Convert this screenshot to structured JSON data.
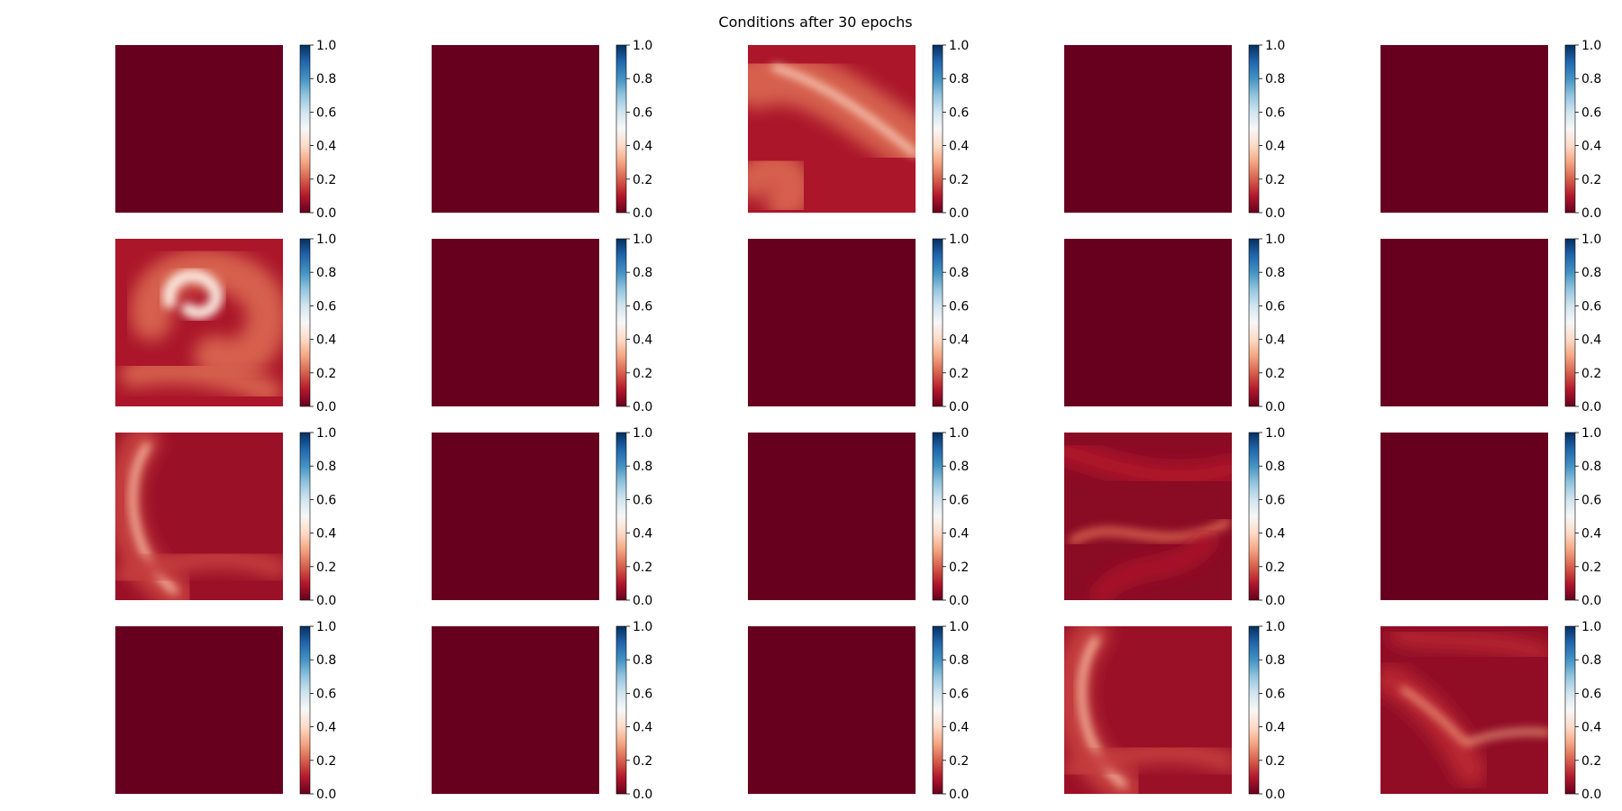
{
  "chart_data": {
    "type": "heatmap",
    "title": "Conditions after 30 epochs",
    "rows": 4,
    "cols": 5,
    "colorbar": {
      "colormap": "RdBu",
      "range": [
        0.0,
        1.0
      ],
      "ticks": [
        "0.0",
        "0.2",
        "0.4",
        "0.6",
        "0.8",
        "1.0"
      ]
    },
    "panels": [
      {
        "row": 1,
        "col": 1,
        "pattern": "uniform",
        "level": 0.0
      },
      {
        "row": 1,
        "col": 2,
        "pattern": "uniform",
        "level": 0.0
      },
      {
        "row": 1,
        "col": 3,
        "pattern": "diagonal-streak",
        "level": 0.2,
        "peak": 0.4
      },
      {
        "row": 1,
        "col": 4,
        "pattern": "uniform",
        "level": 0.0
      },
      {
        "row": 1,
        "col": 5,
        "pattern": "uniform",
        "level": 0.0
      },
      {
        "row": 2,
        "col": 1,
        "pattern": "spiral",
        "level": 0.2,
        "peak": 0.45
      },
      {
        "row": 2,
        "col": 2,
        "pattern": "uniform",
        "level": 0.0
      },
      {
        "row": 2,
        "col": 3,
        "pattern": "uniform",
        "level": 0.0
      },
      {
        "row": 2,
        "col": 4,
        "pattern": "uniform",
        "level": 0.0
      },
      {
        "row": 2,
        "col": 5,
        "pattern": "uniform",
        "level": 0.0
      },
      {
        "row": 3,
        "col": 1,
        "pattern": "arc",
        "level": 0.15,
        "peak": 0.35
      },
      {
        "row": 3,
        "col": 2,
        "pattern": "uniform",
        "level": 0.0
      },
      {
        "row": 3,
        "col": 3,
        "pattern": "uniform",
        "level": 0.0
      },
      {
        "row": 3,
        "col": 4,
        "pattern": "filaments",
        "level": 0.1,
        "peak": 0.2
      },
      {
        "row": 3,
        "col": 5,
        "pattern": "uniform",
        "level": 0.0
      },
      {
        "row": 4,
        "col": 1,
        "pattern": "uniform",
        "level": 0.0
      },
      {
        "row": 4,
        "col": 2,
        "pattern": "uniform",
        "level": 0.0
      },
      {
        "row": 4,
        "col": 3,
        "pattern": "uniform",
        "level": 0.0
      },
      {
        "row": 4,
        "col": 4,
        "pattern": "arc",
        "level": 0.15,
        "peak": 0.35
      },
      {
        "row": 4,
        "col": 5,
        "pattern": "swirl-streak",
        "level": 0.12,
        "peak": 0.3
      }
    ]
  }
}
